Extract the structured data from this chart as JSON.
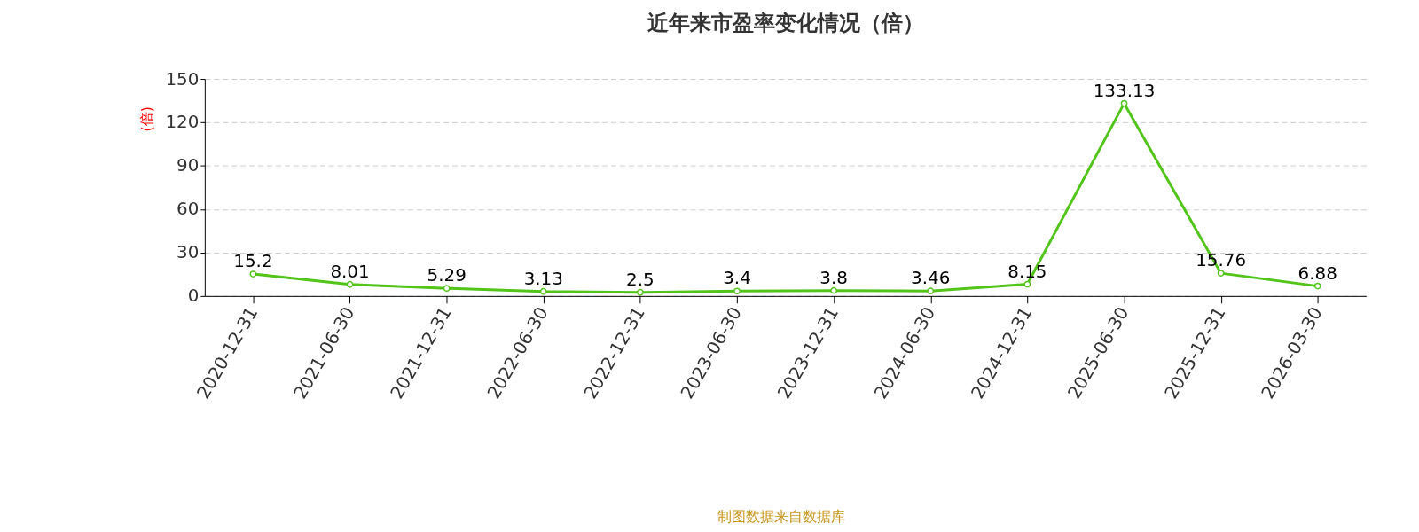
{
  "chart_data": {
    "type": "line",
    "title": "近年来市盈率变化情况（倍）",
    "ylabel": "(倍)",
    "categories": [
      "2020-12-31",
      "2021-06-30",
      "2021-12-31",
      "2022-06-30",
      "2022-12-31",
      "2023-06-30",
      "2023-12-31",
      "2024-06-30",
      "2024-12-31",
      "2025-06-30",
      "2025-12-31",
      "2026-03-30"
    ],
    "series": [
      {
        "color": "#52c41a",
        "values": [
          15.2,
          8.01,
          5.29,
          3.13,
          2.5,
          3.4,
          3.8,
          3.46,
          8.15,
          133.13,
          15.76,
          6.88
        ]
      }
    ],
    "ylim": [
      0,
      150
    ],
    "yticks": [
      0,
      30,
      60,
      90,
      120,
      150
    ],
    "grid": "y",
    "marker": "circle",
    "line_style": "solid",
    "data_labels": true,
    "annotations": [
      "制图数据来自数据库"
    ]
  }
}
